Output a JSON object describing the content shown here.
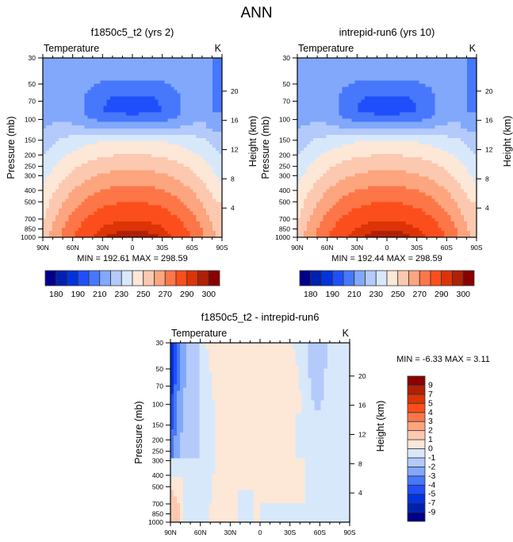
{
  "chart_data": [
    {
      "type": "heatmap",
      "panel": "top-left",
      "title": "f1850c5_t2 (yrs 2)",
      "left_string": "Temperature",
      "right_string": "K",
      "xlabel": "",
      "ylabel": "Pressure (mb)",
      "ylabel_right": "Height (km)",
      "x_ticks": [
        "90N",
        "60N",
        "30N",
        "0",
        "30S",
        "60S",
        "90S"
      ],
      "x_range": [
        90,
        -90
      ],
      "y_ticks": [
        30,
        50,
        70,
        100,
        150,
        200,
        250,
        300,
        400,
        500,
        700,
        850,
        1000
      ],
      "y_range": [
        30,
        1000
      ],
      "y_scale": "log",
      "y_right_ticks": [
        4,
        8,
        12,
        16,
        20
      ],
      "min_max_label": "MIN = 192.61  MAX = 298.59",
      "min": 192.61,
      "max": 298.59,
      "colorbar": {
        "orientation": "horizontal",
        "levels": [
          180,
          185,
          190,
          200,
          210,
          220,
          230,
          240,
          250,
          260,
          270,
          280,
          290,
          295,
          300
        ],
        "tick_labels": [
          "180",
          "190",
          "210",
          "230",
          "250",
          "270",
          "290",
          "300"
        ],
        "colors": [
          "#00008a",
          "#0021b0",
          "#0033dd",
          "#1f4ffb",
          "#4777fb",
          "#82a8fb",
          "#b3cafb",
          "#d8e8fb",
          "#fde7d7",
          "#fcc9b0",
          "#fca57e",
          "#fc7648",
          "#fc4e1c",
          "#dc3406",
          "#b02005",
          "#8a0000"
        ]
      }
    },
    {
      "type": "heatmap",
      "panel": "top-right",
      "title": "intrepid-run6 (yrs 10)",
      "left_string": "Temperature",
      "right_string": "K",
      "xlabel": "",
      "ylabel": "Pressure (mb)",
      "ylabel_right": "Height (km)",
      "x_ticks": [
        "90N",
        "60N",
        "30N",
        "0",
        "30S",
        "60S",
        "90S"
      ],
      "x_range": [
        90,
        -90
      ],
      "y_ticks": [
        30,
        50,
        70,
        100,
        150,
        200,
        250,
        300,
        400,
        500,
        700,
        850,
        1000
      ],
      "y_range": [
        30,
        1000
      ],
      "y_scale": "log",
      "y_right_ticks": [
        4,
        8,
        12,
        16,
        20
      ],
      "min_max_label": "MIN = 192.44  MAX = 298.59",
      "min": 192.44,
      "max": 298.59,
      "colorbar": {
        "orientation": "horizontal",
        "levels": [
          180,
          185,
          190,
          200,
          210,
          220,
          230,
          240,
          250,
          260,
          270,
          280,
          290,
          295,
          300
        ],
        "tick_labels": [
          "180",
          "190",
          "210",
          "230",
          "250",
          "270",
          "290",
          "300"
        ],
        "colors": [
          "#00008a",
          "#0021b0",
          "#0033dd",
          "#1f4ffb",
          "#4777fb",
          "#82a8fb",
          "#b3cafb",
          "#d8e8fb",
          "#fde7d7",
          "#fcc9b0",
          "#fca57e",
          "#fc7648",
          "#fc4e1c",
          "#dc3406",
          "#b02005",
          "#8a0000"
        ]
      }
    },
    {
      "type": "heatmap",
      "panel": "bottom",
      "title": "f1850c5_t2 - intrepid-run6",
      "left_string": "Temperature",
      "right_string": "K",
      "xlabel": "",
      "ylabel": "Pressure (mb)",
      "ylabel_right": "Height (km)",
      "x_ticks": [
        "90N",
        "60N",
        "30N",
        "0",
        "30S",
        "60S",
        "90S"
      ],
      "x_range": [
        90,
        -90
      ],
      "y_ticks": [
        30,
        50,
        70,
        100,
        150,
        200,
        250,
        300,
        400,
        500,
        700,
        850,
        1000
      ],
      "y_range": [
        30,
        1000
      ],
      "y_scale": "log",
      "y_right_ticks": [
        4,
        8,
        12,
        16,
        20
      ],
      "min_max_label": "MIN =  -6.33  MAX =   3.11",
      "min": -6.33,
      "max": 3.11,
      "colorbar": {
        "orientation": "vertical",
        "levels": [
          -9,
          -7,
          -5,
          -4,
          -3,
          -2,
          -1,
          0,
          1,
          2,
          3,
          4,
          5,
          7,
          9
        ],
        "tick_labels": [
          "-9",
          "-7",
          "-5",
          "-4",
          "-3",
          "-2",
          "-1",
          "0",
          "1",
          "2",
          "3",
          "4",
          "5",
          "7",
          "9"
        ],
        "colors": [
          "#00008a",
          "#0021b0",
          "#0033dd",
          "#1f4ffb",
          "#4777fb",
          "#82a8fb",
          "#b3cafb",
          "#d8e8fb",
          "#fde7d7",
          "#fcc9b0",
          "#fca57e",
          "#fc7648",
          "#fc4e1c",
          "#dc3406",
          "#b02005",
          "#8a0000"
        ]
      }
    }
  ],
  "figure": {
    "title": "ANN"
  }
}
